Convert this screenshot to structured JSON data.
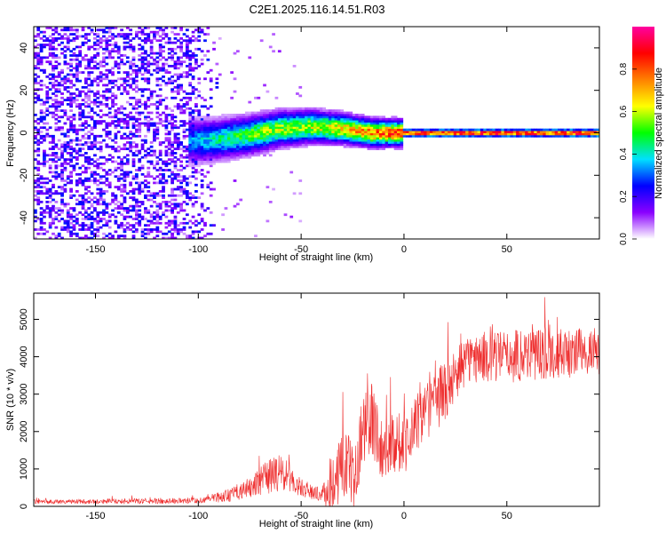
{
  "figure_title": "C2E1.2025.116.14.51.R03",
  "chart_data": [
    {
      "id": "spectrogram",
      "type": "heatmap",
      "title": "",
      "xlabel": "Height of straight line (km)",
      "ylabel": "Frequency (Hz)",
      "xlim": [
        -180,
        95
      ],
      "ylim": [
        -50,
        50
      ],
      "xticks": [
        -150,
        -100,
        -50,
        0,
        50
      ],
      "yticks": [
        -40,
        -20,
        0,
        20,
        40
      ],
      "xtick_labels": [
        "-150",
        "-100",
        "-50",
        "0",
        "50"
      ],
      "ytick_labels": [
        "-40",
        "-20",
        "0",
        "20",
        "40"
      ],
      "colorbar": {
        "label": "Normalized spectral amplitude",
        "range": [
          0,
          1
        ],
        "ticks": [
          0.0,
          0.2,
          0.4,
          0.6,
          0.8
        ],
        "tick_labels": [
          "0.0",
          "0.2",
          "0.4",
          "0.6",
          "0.8"
        ],
        "colors": [
          "#ffffff",
          "#8a00ff",
          "#0000ff",
          "#00e0ff",
          "#00ff00",
          "#ffff00",
          "#ff8000",
          "#ff0000",
          "#ff00a0"
        ]
      },
      "description_points": {
        "noise_region_x": [
          -180,
          -90
        ],
        "onset_x": -105,
        "carrier_frequency": 0,
        "band_center": [
          {
            "x": -105,
            "f": -4
          },
          {
            "x": -90,
            "f": -3
          },
          {
            "x": -75,
            "f": -1
          },
          {
            "x": -60,
            "f": 2
          },
          {
            "x": -45,
            "f": 3
          },
          {
            "x": -30,
            "f": 2
          },
          {
            "x": -15,
            "f": 0
          },
          {
            "x": 0,
            "f": 0
          },
          {
            "x": 95,
            "f": 0
          }
        ],
        "band_amplitude": [
          {
            "x": -105,
            "a": 0.35
          },
          {
            "x": -90,
            "a": 0.45
          },
          {
            "x": -70,
            "a": 0.6
          },
          {
            "x": -50,
            "a": 0.62
          },
          {
            "x": -30,
            "a": 0.7
          },
          {
            "x": -10,
            "a": 0.85
          },
          {
            "x": 0,
            "a": 0.95
          },
          {
            "x": 95,
            "a": 0.97
          }
        ]
      }
    },
    {
      "id": "snr",
      "type": "line",
      "title": "",
      "xlabel": "Height of straight line (km)",
      "ylabel": "SNR (10 * v/v)",
      "xlim": [
        -180,
        95
      ],
      "ylim": [
        0,
        5700
      ],
      "xticks": [
        -150,
        -100,
        -50,
        0,
        50
      ],
      "yticks": [
        0,
        1000,
        2000,
        3000,
        4000,
        5000
      ],
      "xtick_labels": [
        "-150",
        "-100",
        "-50",
        "0",
        "50"
      ],
      "ytick_labels": [
        "0",
        "1000",
        "2000",
        "3000",
        "4000",
        "5000"
      ],
      "line_color": "#ee2b2b",
      "series": [
        {
          "name": "SNR",
          "x": [
            -180,
            -150,
            -100,
            -85,
            -75,
            -65,
            -60,
            -55,
            -50,
            -45,
            -40,
            -35,
            -30,
            -25,
            -20,
            -15,
            -10,
            -5,
            0,
            10,
            20,
            30,
            40,
            50,
            60,
            70,
            80,
            95
          ],
          "mean": [
            120,
            130,
            150,
            300,
            500,
            800,
            900,
            700,
            500,
            400,
            300,
            600,
            1300,
            800,
            2000,
            2300,
            1400,
            1800,
            1700,
            2500,
            3100,
            3900,
            4000,
            4000,
            4100,
            4100,
            4100,
            4150
          ],
          "spread": [
            80,
            90,
            120,
            250,
            400,
            700,
            800,
            500,
            350,
            300,
            250,
            1200,
            1500,
            1200,
            1500,
            1600,
            1000,
            1300,
            1200,
            1100,
            1200,
            900,
            1000,
            1000,
            1100,
            1000,
            900,
            900
          ]
        }
      ]
    }
  ]
}
